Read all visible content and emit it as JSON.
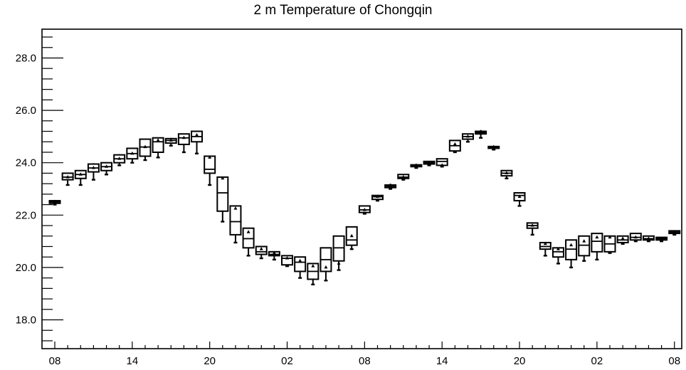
{
  "chart_data": {
    "type": "boxplot",
    "title": "2 m Temperature of Chongqin",
    "xlabel": "",
    "ylabel": "",
    "ylim": [
      16.9,
      29.1
    ],
    "x_tick_labels": [
      "08",
      "14",
      "20",
      "02",
      "08",
      "14",
      "20",
      "02",
      "08"
    ],
    "y_tick_labels": [
      "28.0",
      "26.0",
      "24.0",
      "22.0",
      "20.0",
      "18.0"
    ],
    "y_ticks": [
      28,
      26,
      24,
      22,
      20,
      18
    ],
    "grid": false,
    "series": [
      {
        "boxes": [
          {
            "t": 0,
            "min": 22.4,
            "q1": 22.45,
            "med": 22.5,
            "q3": 22.55,
            "max": 22.58,
            "mean": 22.5
          },
          {
            "t": 1,
            "min": 23.15,
            "q1": 23.35,
            "med": 23.45,
            "q3": 23.6,
            "max": 23.62,
            "mean": 23.45
          },
          {
            "t": 2,
            "min": 23.15,
            "q1": 23.4,
            "med": 23.55,
            "q3": 23.7,
            "max": 23.72,
            "mean": 23.55
          },
          {
            "t": 3,
            "min": 23.35,
            "q1": 23.65,
            "med": 23.8,
            "q3": 23.95,
            "max": 23.98,
            "mean": 23.8
          },
          {
            "t": 4,
            "min": 23.55,
            "q1": 23.7,
            "med": 23.85,
            "q3": 24.0,
            "max": 24.02,
            "mean": 23.85
          },
          {
            "t": 5,
            "min": 23.9,
            "q1": 24.0,
            "med": 24.15,
            "q3": 24.3,
            "max": 24.33,
            "mean": 24.15
          },
          {
            "t": 6,
            "min": 24.0,
            "q1": 24.15,
            "med": 24.35,
            "q3": 24.55,
            "max": 24.57,
            "mean": 24.35
          },
          {
            "t": 7,
            "min": 24.1,
            "q1": 24.25,
            "med": 24.6,
            "q3": 24.9,
            "max": 24.92,
            "mean": 24.6
          },
          {
            "t": 8,
            "min": 24.2,
            "q1": 24.4,
            "med": 24.8,
            "q3": 24.95,
            "max": 24.97,
            "mean": 24.85
          },
          {
            "t": 9,
            "min": 24.65,
            "q1": 24.75,
            "med": 24.85,
            "q3": 24.92,
            "max": 24.95,
            "mean": 24.85
          },
          {
            "t": 10,
            "min": 24.4,
            "q1": 24.7,
            "med": 24.95,
            "q3": 25.1,
            "max": 25.12,
            "mean": 24.95
          },
          {
            "t": 11,
            "min": 24.35,
            "q1": 24.8,
            "med": 25.0,
            "q3": 25.2,
            "max": 25.22,
            "mean": 25.05
          },
          {
            "t": 12,
            "min": 23.15,
            "q1": 23.6,
            "med": 23.75,
            "q3": 24.25,
            "max": 24.27,
            "mean": 24.2
          },
          {
            "t": 13,
            "min": 21.75,
            "q1": 22.15,
            "med": 22.85,
            "q3": 23.45,
            "max": 23.47,
            "mean": 23.4
          },
          {
            "t": 14,
            "min": 20.95,
            "q1": 21.25,
            "med": 21.75,
            "q3": 22.35,
            "max": 22.37,
            "mean": 22.25
          },
          {
            "t": 15,
            "min": 20.45,
            "q1": 20.75,
            "med": 21.1,
            "q3": 21.5,
            "max": 21.52,
            "mean": 21.35
          },
          {
            "t": 16,
            "min": 20.35,
            "q1": 20.5,
            "med": 20.6,
            "q3": 20.8,
            "max": 20.82,
            "mean": 20.7
          },
          {
            "t": 17,
            "min": 20.3,
            "q1": 20.45,
            "med": 20.5,
            "q3": 20.6,
            "max": 20.62,
            "mean": 20.55
          },
          {
            "t": 18,
            "min": 20.05,
            "q1": 20.1,
            "med": 20.35,
            "q3": 20.45,
            "max": 20.47,
            "mean": 20.35
          },
          {
            "t": 19,
            "min": 19.6,
            "q1": 19.85,
            "med": 20.2,
            "q3": 20.4,
            "max": 20.42,
            "mean": 20.25
          },
          {
            "t": 20,
            "min": 19.35,
            "q1": 19.55,
            "med": 19.85,
            "q3": 20.15,
            "max": 20.17,
            "mean": 20.05
          },
          {
            "t": 21,
            "min": 19.5,
            "q1": 19.85,
            "med": 20.3,
            "q3": 20.75,
            "max": 20.77,
            "mean": 20.0
          },
          {
            "t": 22,
            "min": 19.9,
            "q1": 20.25,
            "med": 20.75,
            "q3": 21.2,
            "max": 21.22,
            "mean": 20.15
          },
          {
            "t": 23,
            "min": 20.7,
            "q1": 20.85,
            "med": 21.05,
            "q3": 21.55,
            "max": 21.57,
            "mean": 21.2
          },
          {
            "t": 24,
            "min": 22.05,
            "q1": 22.1,
            "med": 22.2,
            "q3": 22.35,
            "max": 22.37,
            "mean": 22.2
          },
          {
            "t": 25,
            "min": 22.55,
            "q1": 22.6,
            "med": 22.7,
            "q3": 22.75,
            "max": 22.77,
            "mean": 22.7
          },
          {
            "t": 26,
            "min": 23.0,
            "q1": 23.05,
            "med": 23.1,
            "q3": 23.15,
            "max": 23.2,
            "mean": 23.1
          },
          {
            "t": 27,
            "min": 23.35,
            "q1": 23.4,
            "med": 23.45,
            "q3": 23.55,
            "max": 23.57,
            "mean": 23.45
          },
          {
            "t": 28,
            "min": 23.8,
            "q1": 23.85,
            "med": 23.9,
            "q3": 23.92,
            "max": 23.94,
            "mean": 23.9
          },
          {
            "t": 29,
            "min": 23.9,
            "q1": 23.95,
            "med": 24.0,
            "q3": 24.05,
            "max": 24.07,
            "mean": 24.0
          },
          {
            "t": 30,
            "min": 23.85,
            "q1": 23.9,
            "med": 24.05,
            "q3": 24.15,
            "max": 24.17,
            "mean": 23.9
          },
          {
            "t": 31,
            "min": 24.4,
            "q1": 24.45,
            "med": 24.65,
            "q3": 24.85,
            "max": 24.87,
            "mean": 24.7
          },
          {
            "t": 32,
            "min": 24.8,
            "q1": 24.9,
            "med": 25.0,
            "q3": 25.1,
            "max": 25.12,
            "mean": 25.0
          },
          {
            "t": 33,
            "min": 24.95,
            "q1": 25.1,
            "med": 25.15,
            "q3": 25.2,
            "max": 25.25,
            "mean": 25.15
          },
          {
            "t": 34,
            "min": 24.5,
            "q1": 24.55,
            "med": 24.6,
            "q3": 24.62,
            "max": 24.65,
            "mean": 24.6
          },
          {
            "t": 35,
            "min": 23.4,
            "q1": 23.5,
            "med": 23.6,
            "q3": 23.7,
            "max": 23.72,
            "mean": 23.6
          },
          {
            "t": 36,
            "min": 22.35,
            "q1": 22.55,
            "med": 22.75,
            "q3": 22.85,
            "max": 22.87,
            "mean": 22.7
          },
          {
            "t": 37,
            "min": 21.25,
            "q1": 21.5,
            "med": 21.6,
            "q3": 21.7,
            "max": 21.72,
            "mean": 21.6
          },
          {
            "t": 38,
            "min": 20.45,
            "q1": 20.7,
            "med": 20.8,
            "q3": 20.95,
            "max": 20.97,
            "mean": 20.9
          },
          {
            "t": 39,
            "min": 20.15,
            "q1": 20.4,
            "med": 20.6,
            "q3": 20.75,
            "max": 20.77,
            "mean": 20.7
          },
          {
            "t": 40,
            "min": 20.0,
            "q1": 20.3,
            "med": 20.7,
            "q3": 21.05,
            "max": 21.07,
            "mean": 20.85
          },
          {
            "t": 41,
            "min": 20.25,
            "q1": 20.45,
            "med": 20.85,
            "q3": 21.2,
            "max": 21.22,
            "mean": 21.0
          },
          {
            "t": 42,
            "min": 20.3,
            "q1": 20.6,
            "med": 21.0,
            "q3": 21.3,
            "max": 21.32,
            "mean": 21.15
          },
          {
            "t": 43,
            "min": 20.55,
            "q1": 20.6,
            "med": 20.9,
            "q3": 21.2,
            "max": 21.22,
            "mean": 21.15
          },
          {
            "t": 44,
            "min": 20.9,
            "q1": 20.95,
            "med": 21.05,
            "q3": 21.2,
            "max": 21.22,
            "mean": 21.1
          },
          {
            "t": 45,
            "min": 21.0,
            "q1": 21.05,
            "med": 21.15,
            "q3": 21.3,
            "max": 21.32,
            "mean": 21.15
          },
          {
            "t": 46,
            "min": 21.0,
            "q1": 21.05,
            "med": 21.1,
            "q3": 21.2,
            "max": 21.22,
            "mean": 21.1
          },
          {
            "t": 47,
            "min": 21.0,
            "q1": 21.05,
            "med": 21.1,
            "q3": 21.15,
            "max": 21.17,
            "mean": 21.1
          },
          {
            "t": 48,
            "min": 21.25,
            "q1": 21.3,
            "med": 21.35,
            "q3": 21.4,
            "max": 21.42,
            "mean": 21.35
          }
        ]
      }
    ]
  }
}
